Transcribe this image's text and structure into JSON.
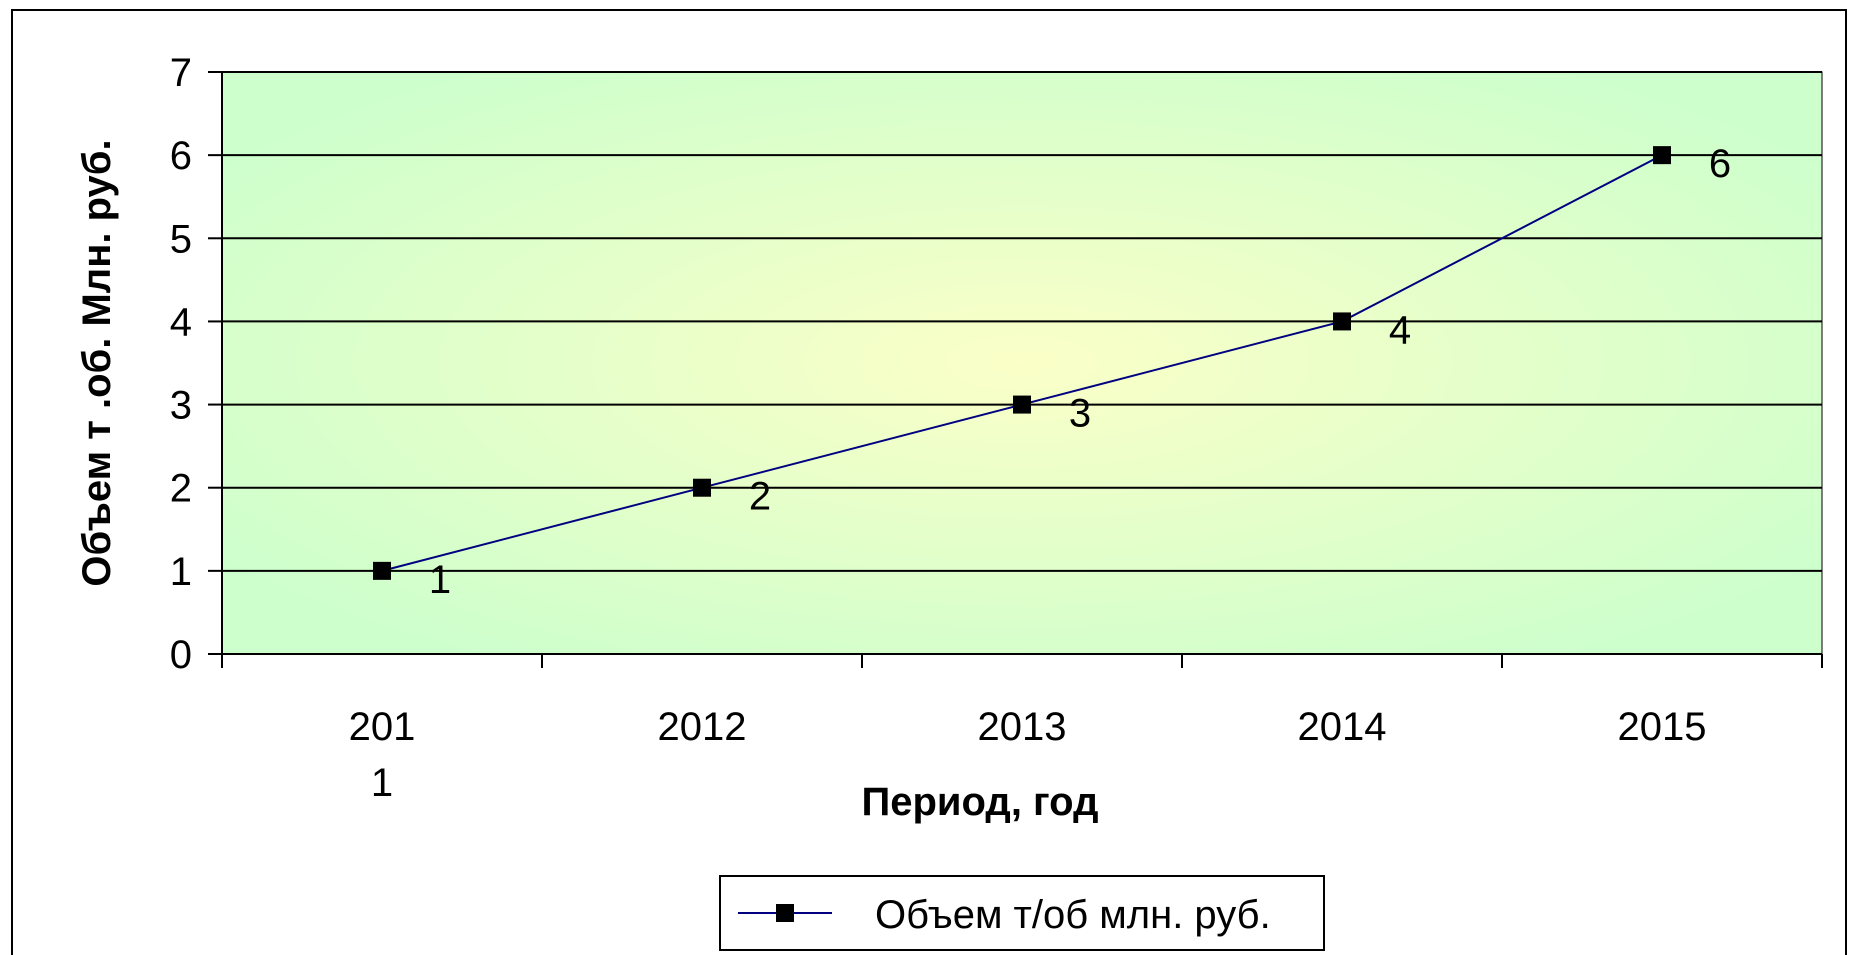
{
  "chart_data": {
    "type": "line",
    "categories": [
      "2011",
      "2012",
      "2013",
      "2014",
      "2015"
    ],
    "category_labels_display": [
      [
        "201",
        "1"
      ],
      [
        "2012"
      ],
      [
        "2013"
      ],
      [
        "2014"
      ],
      [
        "2015"
      ]
    ],
    "series": [
      {
        "name": "Объем т/об млн. руб.",
        "values": [
          1,
          2,
          3,
          4,
          6
        ],
        "color": "#000080",
        "marker": "square"
      }
    ],
    "data_labels": [
      "1",
      "2",
      "3",
      "4",
      "6"
    ],
    "xlabel": "Период, год",
    "ylabel": "Объем т .об. Млн. руб.",
    "ylim": [
      0,
      7
    ],
    "yticks": [
      "0",
      "1",
      "2",
      "3",
      "4",
      "5",
      "6",
      "7"
    ],
    "grid": true,
    "legend": "bottom",
    "colors": {
      "plot_center": "#fbffc8",
      "plot_edge": "#ccffcc",
      "gridline": "#000000",
      "line": "#000080",
      "marker": "#000000"
    }
  }
}
